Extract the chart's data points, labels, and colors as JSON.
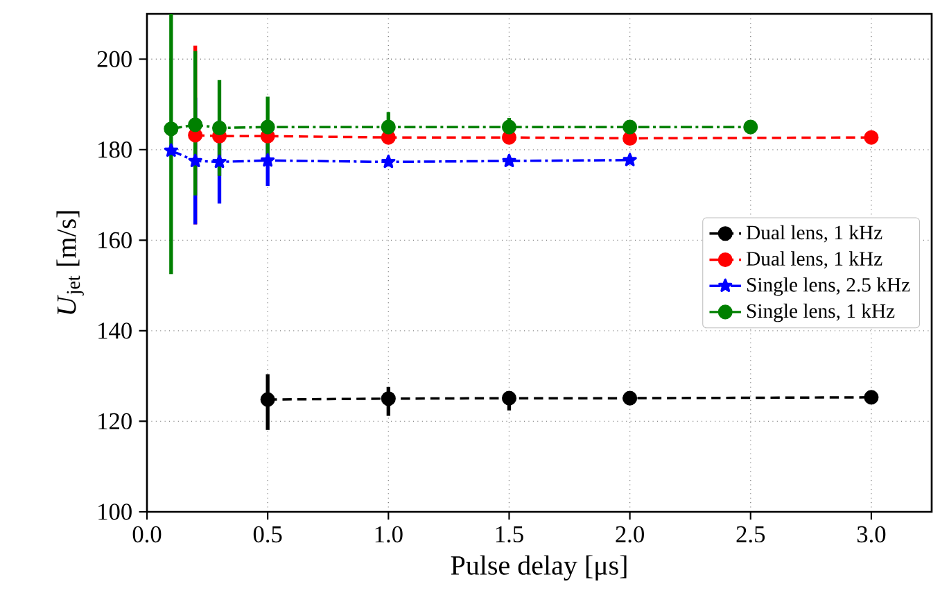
{
  "chart_data": {
    "type": "line",
    "xlabel": "Pulse delay [μs]",
    "ylabel": "*U*$_{jet}$ [m/s]",
    "xlim": [
      0,
      3.25
    ],
    "ylim": [
      100,
      210
    ],
    "xticks": [
      {
        "value": 0,
        "label": "0.0"
      },
      0.5,
      {
        "value": 1,
        "label": "1.0"
      },
      1.5,
      {
        "value": 2,
        "label": "2.0"
      },
      2.5,
      {
        "value": 3,
        "label": "3.0"
      }
    ],
    "yticks": [
      100,
      120,
      140,
      160,
      180,
      200
    ],
    "grid": true,
    "legend": "right",
    "series": [
      {
        "name": "Dual lens, 1 kHz",
        "color": "#000000",
        "line_style": "dashed",
        "marker": "circle",
        "x": [
          0.5,
          1,
          1.5,
          2,
          3
        ],
        "values": [
          124.8,
          125,
          125.1,
          125.1,
          125.3
        ],
        "errors": [
          [
            118.1,
            130.4
          ],
          [
            121.2,
            127.6
          ],
          [
            122.4,
            126.4
          ],
          null,
          null
        ]
      },
      {
        "name": "Dual lens, 1 kHz",
        "color": "#ff0000",
        "line_style": "dashed",
        "marker": "circle",
        "x": [
          0.2,
          0.3,
          0.5,
          1,
          1.5,
          2,
          3
        ],
        "values": [
          183.2,
          183,
          183,
          182.7,
          182.7,
          182.5,
          182.7
        ],
        "errors": [
          [
            163.5,
            203
          ],
          null,
          null,
          null,
          null,
          null,
          null
        ]
      },
      {
        "name": "Single lens, 2.5 kHz",
        "color": "#0000ff",
        "line_style": "dashdot",
        "marker": "star",
        "x": [
          0.1,
          0.2,
          0.3,
          0.5,
          1,
          1.5,
          2
        ],
        "values": [
          179.8,
          177.5,
          177.3,
          177.6,
          177.3,
          177.5,
          177.7
        ],
        "errors": [
          null,
          [
            163.5,
            191.5
          ],
          [
            168.1,
            186.5
          ],
          [
            172,
            183.2
          ],
          null,
          null,
          null
        ]
      },
      {
        "name": "Single lens, 1 kHz",
        "color": "#008000",
        "line_style": "dashdot",
        "marker": "circle",
        "x": [
          0.1,
          0.2,
          0.3,
          0.5,
          1,
          1.5,
          2,
          2.5
        ],
        "values": [
          184.6,
          185.5,
          184.8,
          185,
          185,
          185,
          185,
          185
        ],
        "errors": [
          [
            152.5,
            210
          ],
          [
            169.9,
            201.8
          ],
          [
            174.2,
            195.4
          ],
          [
            178.3,
            191.7
          ],
          [
            181.7,
            188.3
          ],
          [
            183,
            187
          ],
          null,
          null
        ]
      }
    ]
  }
}
